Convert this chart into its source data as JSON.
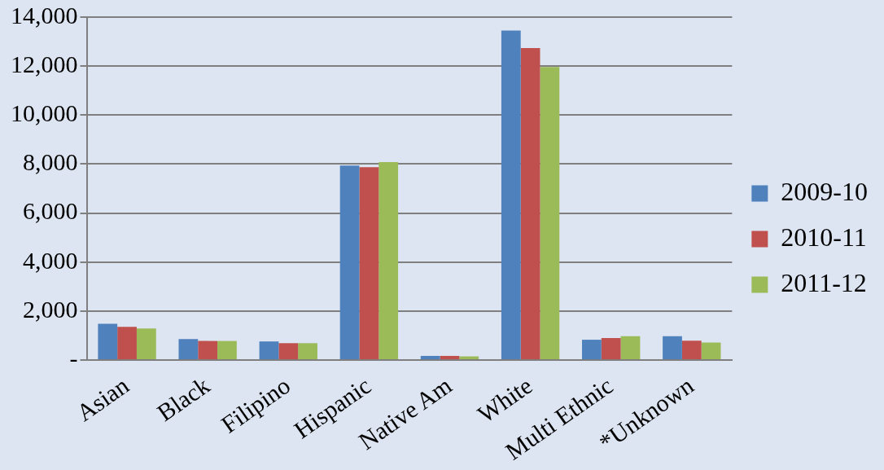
{
  "chart_data": {
    "type": "bar",
    "categories": [
      "Asian",
      "Black",
      "Filipino",
      "Hispanic",
      "Native Am",
      "White",
      "Multi Ethnic",
      "*Unknown"
    ],
    "series": [
      {
        "name": "2009-10",
        "color": "#4f81bd",
        "values": [
          1480,
          860,
          760,
          7940,
          170,
          13450,
          830,
          970
        ]
      },
      {
        "name": "2010-11",
        "color": "#c0504d",
        "values": [
          1360,
          780,
          690,
          7870,
          170,
          12740,
          900,
          790
        ]
      },
      {
        "name": "2011-12",
        "color": "#9bbb59",
        "values": [
          1290,
          780,
          690,
          8080,
          150,
          11960,
          970,
          720
        ]
      }
    ],
    "ylim": [
      0,
      14000
    ],
    "yticks": [
      {
        "value": 0,
        "label": "-"
      },
      {
        "value": 2000,
        "label": "2,000"
      },
      {
        "value": 4000,
        "label": "4,000"
      },
      {
        "value": 6000,
        "label": "6,000"
      },
      {
        "value": 8000,
        "label": "8,000"
      },
      {
        "value": 10000,
        "label": "10,000"
      },
      {
        "value": 12000,
        "label": "12,000"
      },
      {
        "value": 14000,
        "label": "14,000"
      }
    ],
    "grid": "y",
    "legend": "right"
  }
}
